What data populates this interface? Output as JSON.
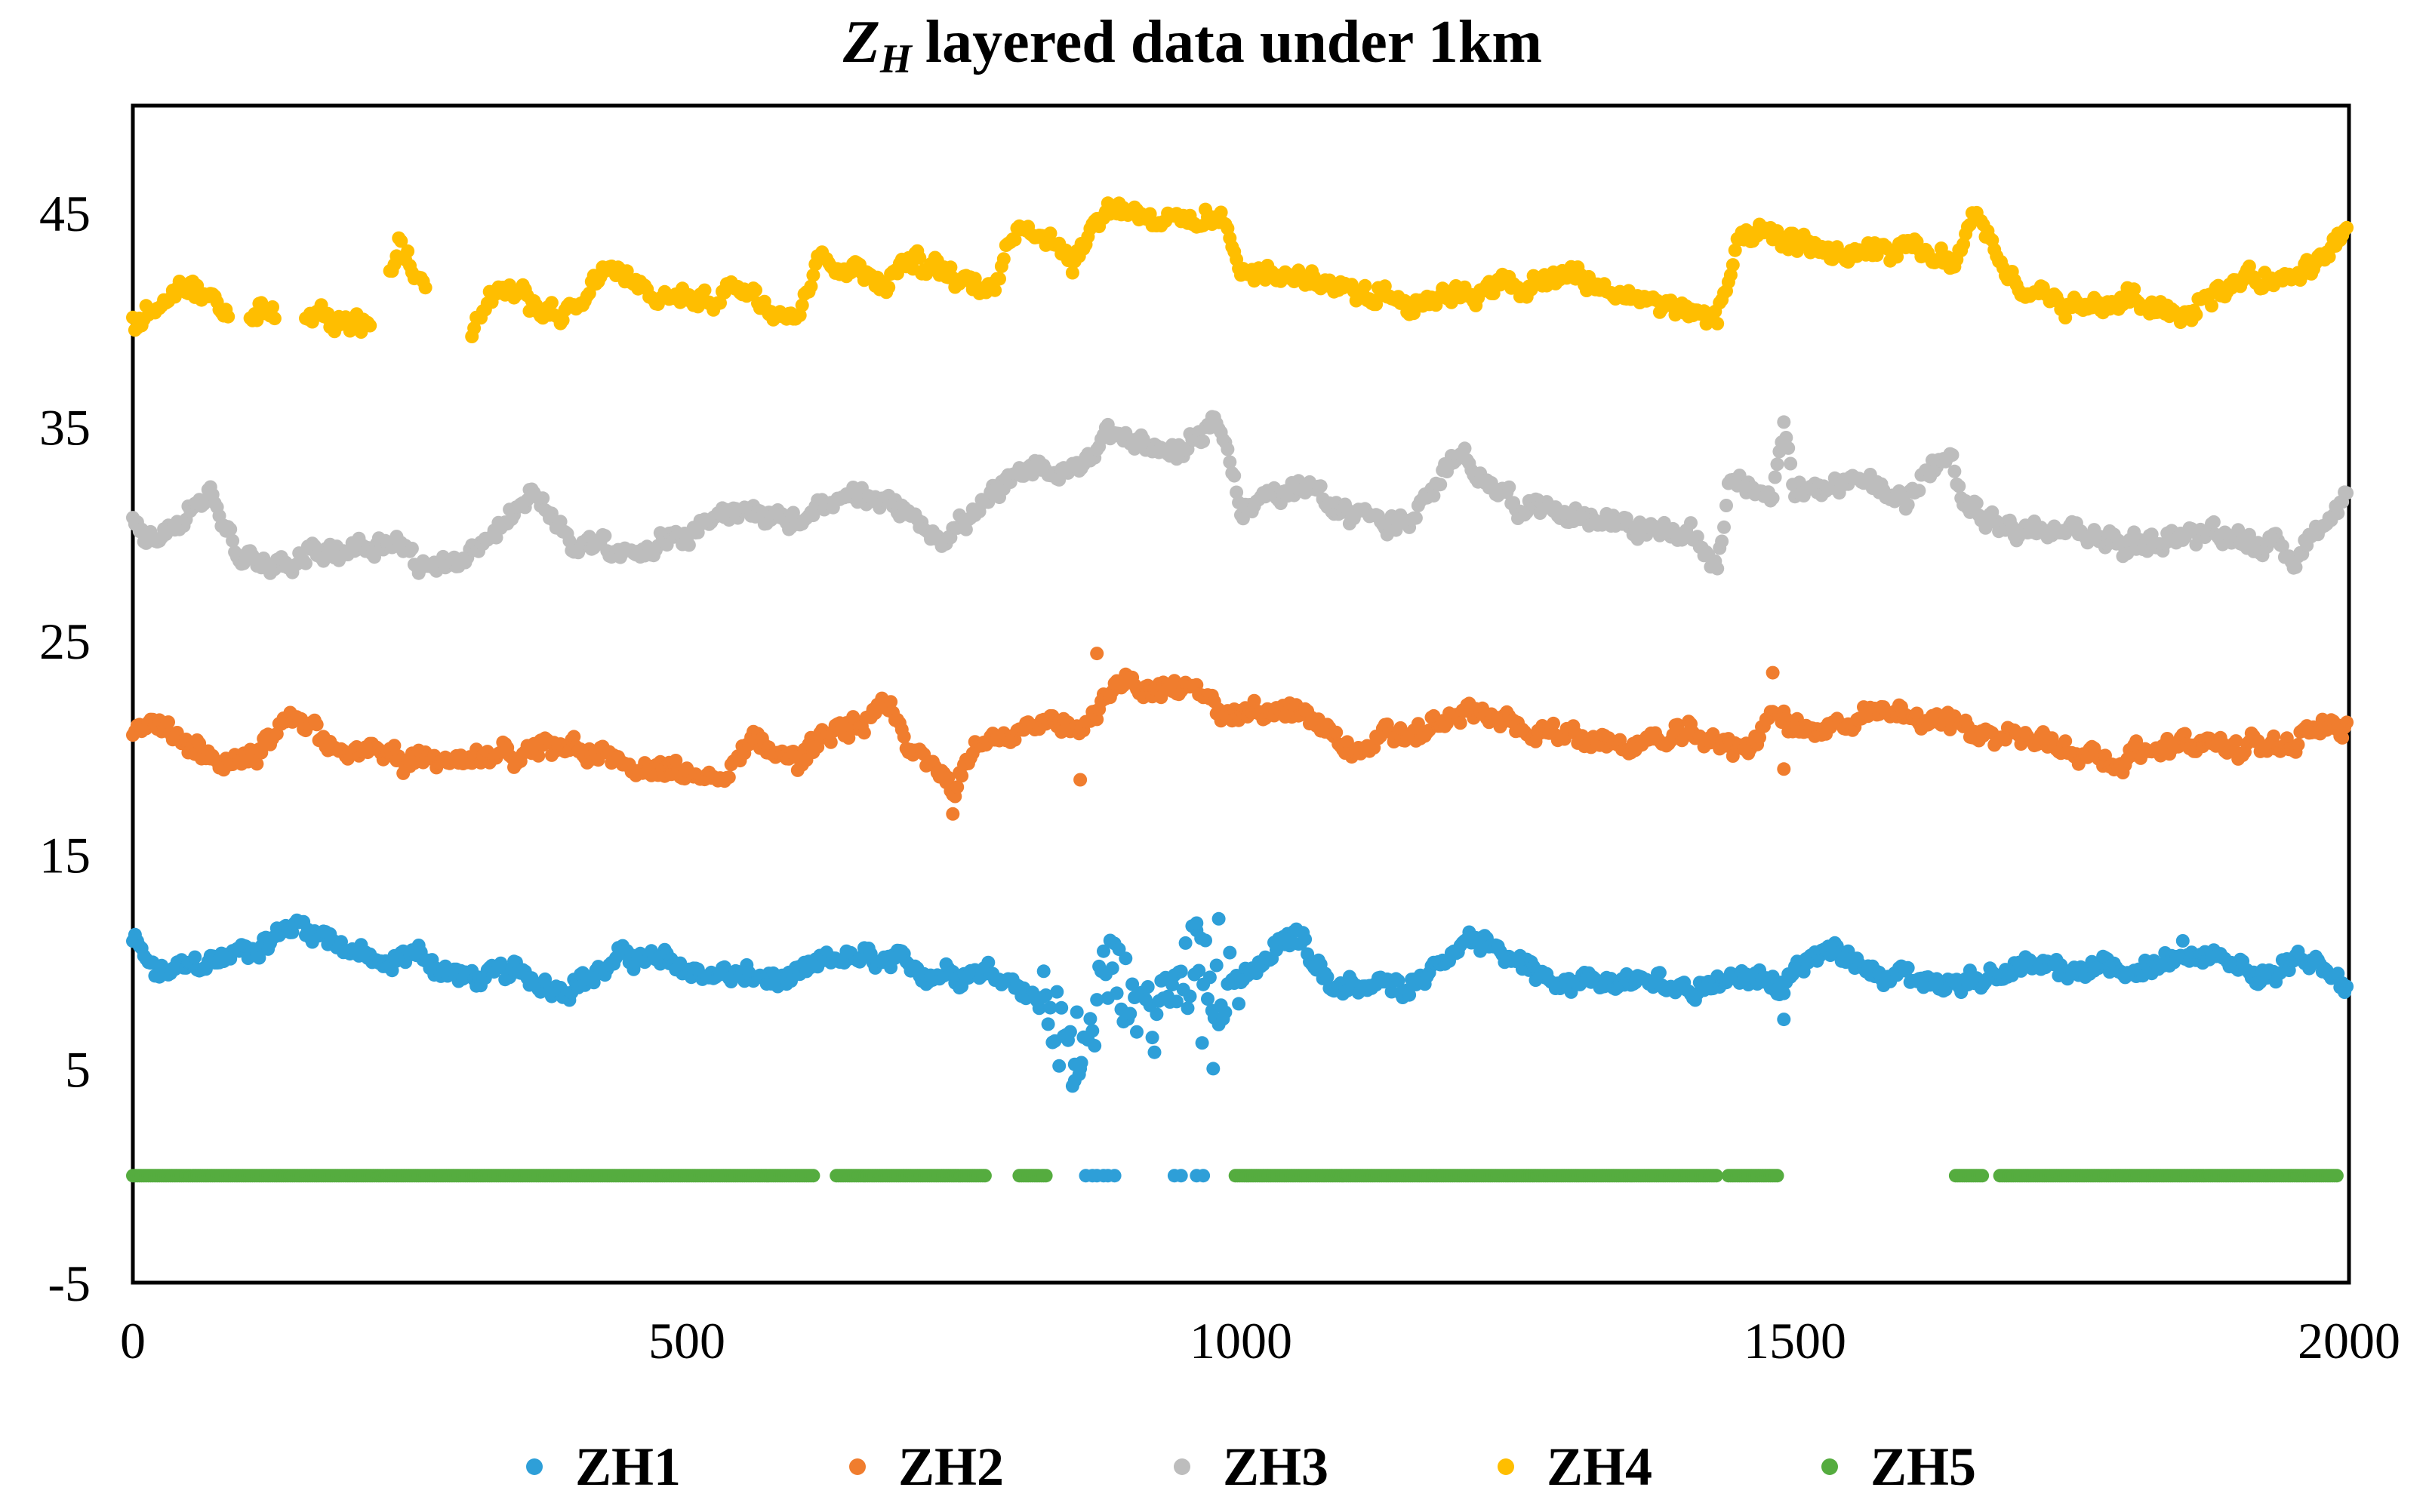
{
  "colors": {
    "ZH1": "#2E9FD8",
    "ZH2": "#F07D2E",
    "ZH3": "#BDBDBD",
    "ZH4": "#FFBE00",
    "ZH5": "#55AC3F"
  },
  "chart_data": {
    "type": "scatter",
    "title": "layered data under 1km",
    "title_symbol": "Z",
    "title_subscript": "H",
    "xlabel": "",
    "ylabel": "",
    "xlim": [
      0,
      2000
    ],
    "ylim": [
      -5,
      50
    ],
    "xticks": [
      0,
      500,
      1000,
      1500,
      2000
    ],
    "yticks": [
      -5,
      5,
      15,
      25,
      35,
      45
    ],
    "legend_position": "bottom",
    "series": [
      {
        "name": "ZH1",
        "color": "#2E9FD8",
        "x": [
          0,
          20,
          50,
          100,
          150,
          180,
          230,
          250,
          300,
          350,
          380,
          420,
          450,
          480,
          500,
          560,
          600,
          640,
          700,
          760,
          800,
          830,
          845,
          860,
          880,
          900,
          920,
          940,
          960,
          980,
          1000,
          1050,
          1080,
          1150,
          1200,
          1250,
          1300,
          1350,
          1400,
          1450,
          1490,
          1530,
          1600,
          1650,
          1700,
          1750,
          1800,
          1850,
          1900,
          1950,
          1999
        ],
        "values": [
          11,
          9.3,
          9.6,
          10.5,
          11.8,
          11.2,
          9.5,
          10.5,
          9.2,
          9.3,
          9.0,
          9.5,
          10.3,
          9.8,
          9.6,
          9.2,
          9.0,
          10.2,
          9.5,
          9.8,
          9.2,
          7.5,
          5.2,
          7.5,
          9.5,
          8.2,
          7.3,
          8.8,
          10.5,
          8.5,
          9.0,
          11.5,
          9.0,
          9.0,
          11.0,
          10.2,
          9.0,
          9.0,
          8.8,
          9.5,
          9.2,
          10.5,
          9.2,
          9.0,
          9.8,
          9.3,
          9.6,
          10.2,
          9.6,
          10.2,
          8.8
        ],
        "outliers": [
          [
            850,
            5.2
          ],
          [
            855,
            5.0
          ],
          [
            975,
            5.0
          ],
          [
            980,
            12.0
          ],
          [
            960,
            11.8
          ],
          [
            965,
            6.2
          ],
          [
            1490,
            7.3
          ]
        ]
      },
      {
        "name": "ZH2",
        "color": "#F07D2E",
        "x": [
          0,
          20,
          50,
          100,
          150,
          200,
          250,
          300,
          350,
          400,
          450,
          500,
          540,
          560,
          600,
          650,
          680,
          700,
          740,
          760,
          800,
          850,
          880,
          900,
          950,
          1000,
          1050,
          1100,
          1150,
          1200,
          1250,
          1300,
          1350,
          1400,
          1450,
          1480,
          1500,
          1550,
          1600,
          1650,
          1700,
          1750,
          1800,
          1850,
          1900,
          1950,
          1999
        ],
        "values": [
          20.8,
          20.5,
          20.0,
          19.0,
          21.5,
          19.8,
          19.5,
          19.0,
          19.5,
          20.5,
          19.0,
          18.5,
          18.5,
          20.5,
          19.5,
          21.0,
          21.5,
          20.0,
          18.0,
          20.8,
          20.5,
          21.0,
          22.5,
          23.0,
          22.5,
          21.8,
          21.5,
          20.0,
          20.5,
          21.5,
          21.0,
          20.5,
          20.0,
          20.5,
          20.0,
          21.5,
          21.0,
          21.0,
          21.5,
          21.0,
          20.5,
          20.0,
          19.5,
          20.5,
          19.8,
          20.2,
          21.0
        ],
        "outliers": [
          [
            740,
            16.9
          ],
          [
            870,
            24.4
          ],
          [
            1480,
            23.5
          ],
          [
            1490,
            19.0
          ],
          [
            855,
            18.5
          ]
        ]
      },
      {
        "name": "ZH3",
        "color": "#BDBDBD",
        "x": [
          0,
          20,
          50,
          70,
          100,
          150,
          200,
          230,
          260,
          300,
          340,
          360,
          400,
          450,
          500,
          550,
          600,
          650,
          700,
          730,
          760,
          800,
          850,
          880,
          920,
          960,
          975,
          980,
          1000,
          1050,
          1100,
          1150,
          1200,
          1250,
          1300,
          1350,
          1400,
          1420,
          1430,
          1440,
          1480,
          1490,
          1500,
          1550,
          1600,
          1640,
          1650,
          1700,
          1750,
          1800,
          1850,
          1900,
          1950,
          1999
        ],
        "values": [
          31.0,
          30.0,
          31.0,
          32.0,
          28.5,
          29.0,
          29.5,
          30.0,
          28.5,
          29.0,
          30.5,
          32.0,
          29.5,
          28.8,
          30.0,
          31.5,
          30.5,
          31.5,
          31.0,
          30.0,
          31.0,
          32.5,
          33.0,
          35.0,
          34.0,
          34.0,
          35.5,
          35.0,
          31.5,
          32.0,
          31.0,
          30.5,
          33.5,
          31.5,
          31.0,
          30.5,
          30.0,
          29.0,
          28.5,
          32.5,
          32.0,
          35.5,
          31.5,
          32.5,
          32.0,
          33.5,
          31.0,
          30.0,
          30.0,
          29.5,
          30.0,
          30.0,
          29.0,
          32.0
        ]
      },
      {
        "name": "ZH4",
        "color": "#FFBE00",
        "x": [
          0,
          20,
          50,
          70,
          100,
          120,
          160,
          180,
          220,
          240,
          300,
          330,
          350,
          400,
          430,
          460,
          500,
          550,
          600,
          620,
          680,
          700,
          750,
          780,
          800,
          850,
          880,
          920,
          960,
          980,
          1000,
          1050,
          1100,
          1150,
          1200,
          1250,
          1300,
          1350,
          1400,
          1430,
          1450,
          1500,
          1550,
          1600,
          1640,
          1660,
          1700,
          1750,
          1800,
          1850,
          1900,
          1950,
          1999
        ],
        "values": [
          40.0,
          40.5,
          41.0,
          40.5,
          40.0,
          40.5,
          40.0,
          39.5,
          40.0,
          43.5,
          40.0,
          41.5,
          41.0,
          40.0,
          42.5,
          41.0,
          41.0,
          41.5,
          40.5,
          43.0,
          42.0,
          43.0,
          41.5,
          42.0,
          45.0,
          43.0,
          45.5,
          45.0,
          44.5,
          45.0,
          42.5,
          42.0,
          41.5,
          41.0,
          41.5,
          41.5,
          42.0,
          41.0,
          40.5,
          40.0,
          43.5,
          43.5,
          43.0,
          43.0,
          42.5,
          44.5,
          41.5,
          40.5,
          41.0,
          40.5,
          42.0,
          41.5,
          44.0
        ],
        "gaps": [
          [
            88,
            105
          ],
          [
            130,
            155
          ],
          [
            215,
            230
          ],
          [
            265,
            305
          ]
        ]
      },
      {
        "name": "ZH5",
        "color": "#55AC3F",
        "x_segments": [
          [
            0,
            615
          ],
          [
            635,
            770
          ],
          [
            800,
            825
          ],
          [
            995,
            1430
          ],
          [
            1440,
            1485
          ],
          [
            1645,
            1670
          ],
          [
            1685,
            1990
          ]
        ],
        "value": 0
      }
    ],
    "overlay_points": {
      "note": "ZH1 points at y=0 visible where ZH5 is absent",
      "series": "ZH1",
      "x": [
        860,
        870,
        880,
        940,
        960
      ],
      "values": [
        0,
        0,
        0,
        0,
        0
      ]
    }
  },
  "legend": {
    "items": [
      "ZH1",
      "ZH2",
      "ZH3",
      "ZH4",
      "ZH5"
    ]
  }
}
